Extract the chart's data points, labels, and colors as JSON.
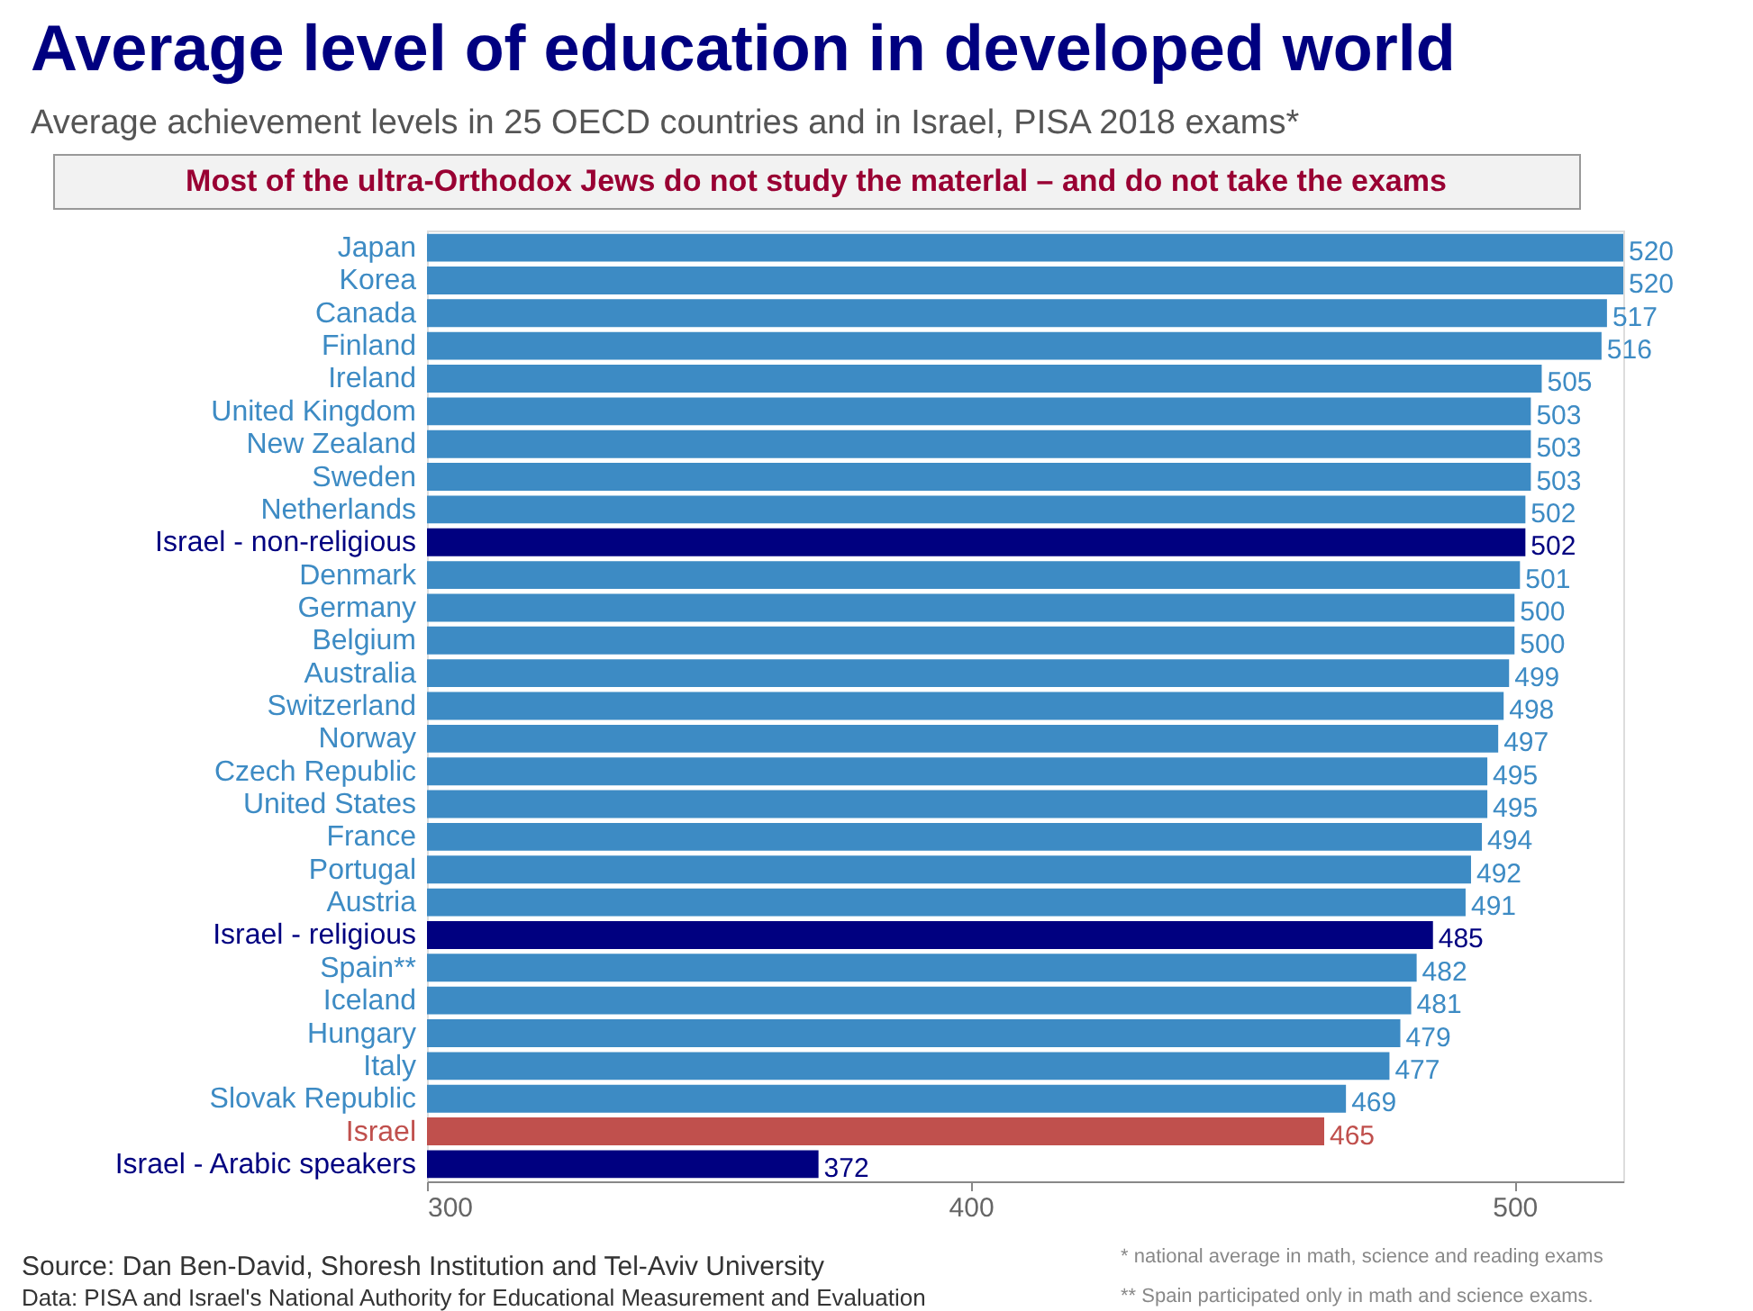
{
  "chart_data": {
    "type": "bar",
    "orientation": "horizontal",
    "title": "Average level of education in developed world",
    "subtitle": "Average achievement levels in 25 OECD countries and in Israel, PISA 2018 exams*",
    "categories": [
      "Japan",
      "Korea",
      "Canada",
      "Finland",
      "Ireland",
      "United Kingdom",
      "New Zealand",
      "Sweden",
      "Netherlands",
      "Israel - non-religious",
      "Denmark",
      "Germany",
      "Belgium",
      "Australia",
      "Switzerland",
      "Norway",
      "Czech Republic",
      "United States",
      "France",
      "Portugal",
      "Austria",
      "Israel - religious",
      "Spain**",
      "Iceland",
      "Hungary",
      "Italy",
      "Slovak Republic",
      "Israel",
      "Israel - Arabic speakers"
    ],
    "values": [
      520,
      520,
      517,
      516,
      505,
      503,
      503,
      503,
      502,
      502,
      501,
      500,
      500,
      499,
      498,
      497,
      495,
      495,
      494,
      492,
      491,
      485,
      482,
      481,
      479,
      477,
      469,
      465,
      372
    ],
    "colors": [
      "#3d8bc4",
      "#3d8bc4",
      "#3d8bc4",
      "#3d8bc4",
      "#3d8bc4",
      "#3d8bc4",
      "#3d8bc4",
      "#3d8bc4",
      "#3d8bc4",
      "#000080",
      "#3d8bc4",
      "#3d8bc4",
      "#3d8bc4",
      "#3d8bc4",
      "#3d8bc4",
      "#3d8bc4",
      "#3d8bc4",
      "#3d8bc4",
      "#3d8bc4",
      "#3d8bc4",
      "#3d8bc4",
      "#000080",
      "#3d8bc4",
      "#3d8bc4",
      "#3d8bc4",
      "#3d8bc4",
      "#3d8bc4",
      "#c0504d",
      "#000080"
    ],
    "xlim": [
      300,
      520
    ],
    "xticks": [
      300,
      400,
      500
    ],
    "grid": false,
    "data_labels": true,
    "annotations": [
      "Most of the ultra-Orthodox Jews do not study the materlal – and do not take the exams",
      "Source: Dan Ben-David, Shoresh Institution and Tel-Aviv University",
      "Data: PISA and Israel's National Authority for Educational Measurement and Evaluation",
      "* national average in math, science and reading exams",
      "** Spain participated only in math and science exams."
    ]
  }
}
